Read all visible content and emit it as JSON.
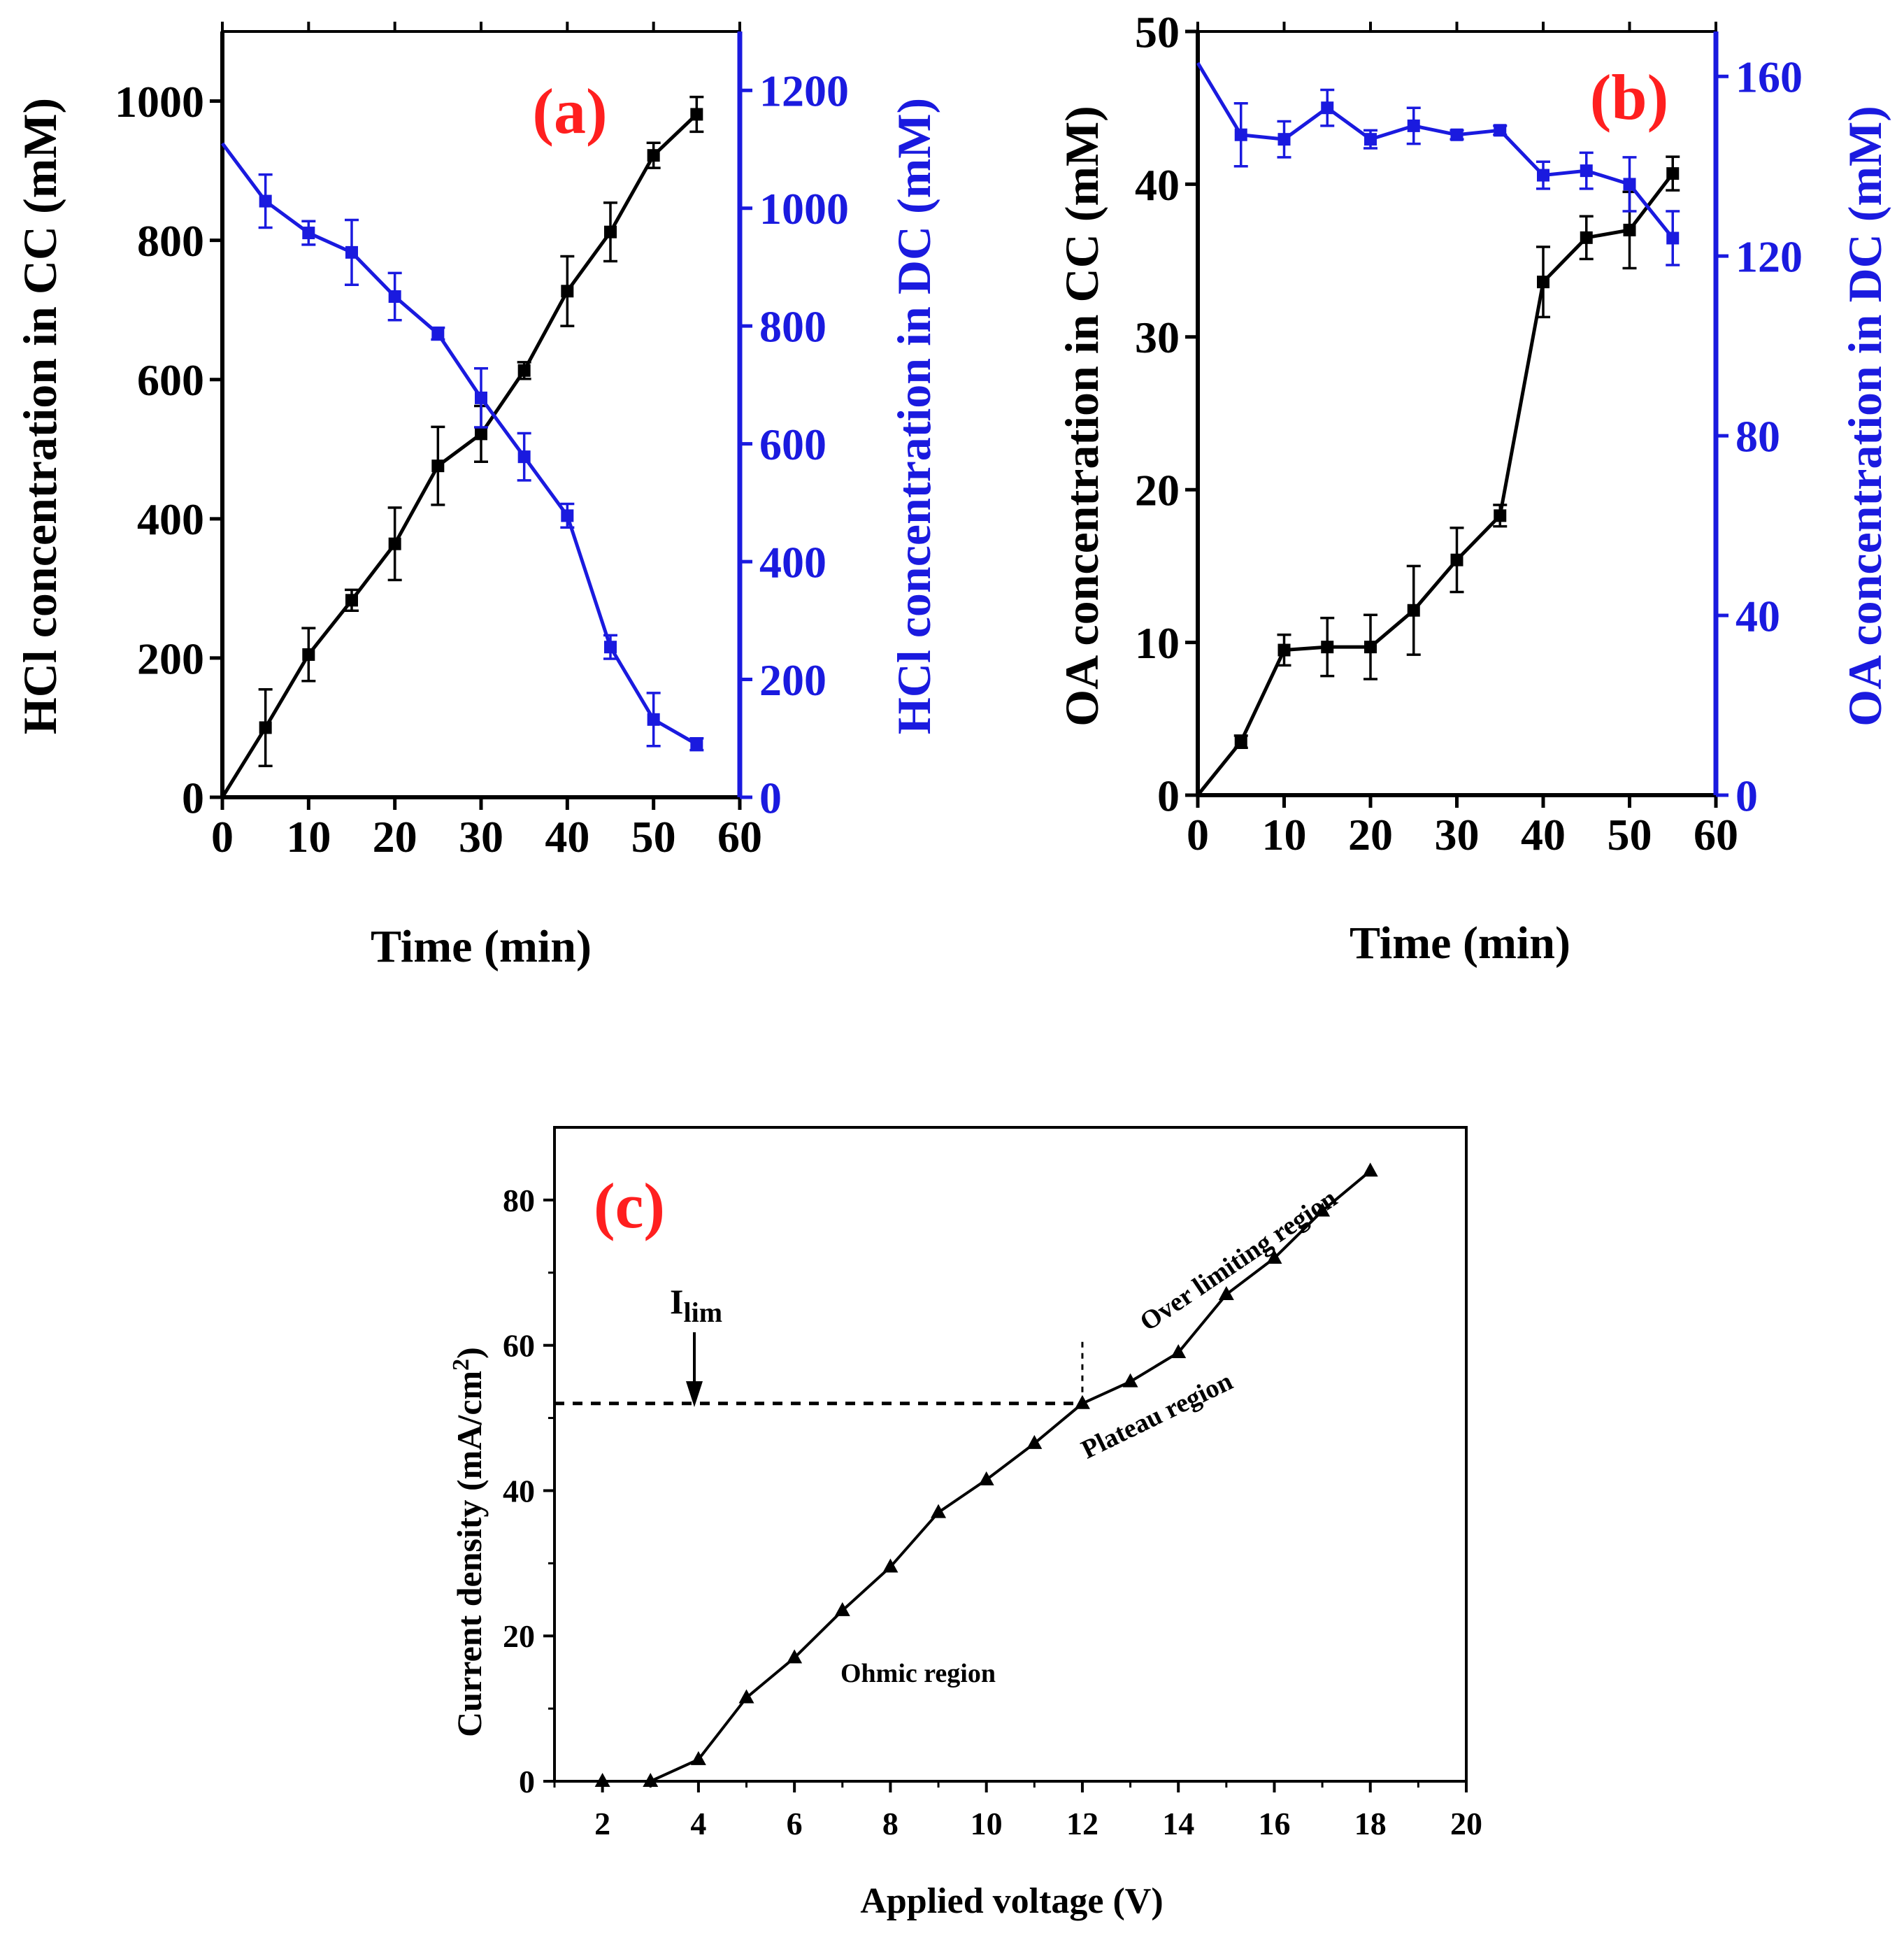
{
  "figure": {
    "colors": {
      "cc": "#000000",
      "dc": "#1a1adf",
      "panel_label": "#ff1f1f"
    }
  },
  "chart_data": [
    {
      "id": "a",
      "type": "line",
      "panel_label": "(a)",
      "xlabel": "Time (min)",
      "ylabel_left": "HCl concentration in CC (mM)",
      "ylabel_right": "HCl concentration in DC (mM)",
      "xlim": [
        0,
        60
      ],
      "ylim_left": [
        0,
        1100
      ],
      "ylim_right": [
        0,
        1300
      ],
      "xticks": [
        0,
        10,
        20,
        30,
        40,
        50,
        60
      ],
      "yticks_left": [
        0,
        200,
        400,
        600,
        800,
        1000
      ],
      "yticks_right": [
        0,
        200,
        400,
        600,
        800,
        1000,
        1200
      ],
      "series": [
        {
          "name": "HCl concentration in CC",
          "axis": "left",
          "color": "#000000",
          "marker": "square",
          "x": [
            0,
            5,
            10,
            15,
            20,
            25,
            30,
            35,
            40,
            45,
            50,
            55
          ],
          "y": [
            0,
            100,
            205,
            283,
            364,
            476,
            522,
            613,
            727,
            812,
            922,
            981
          ],
          "err": [
            0,
            55,
            38,
            15,
            52,
            56,
            40,
            12,
            50,
            42,
            18,
            25
          ]
        },
        {
          "name": "HCl concentration in DC",
          "axis": "right",
          "color": "#1a1adf",
          "marker": "square",
          "x": [
            0,
            5,
            10,
            15,
            20,
            25,
            30,
            35,
            40,
            45,
            50,
            55
          ],
          "y": [
            1110,
            1012,
            958,
            925,
            850,
            787,
            678,
            578,
            478,
            255,
            132,
            90
          ],
          "err": [
            0,
            45,
            20,
            55,
            40,
            10,
            50,
            40,
            20,
            20,
            45,
            10
          ]
        }
      ]
    },
    {
      "id": "b",
      "type": "line",
      "panel_label": "(b)",
      "xlabel": "Time (min)",
      "ylabel_left": "OA concentration in CC (mM)",
      "ylabel_right": "OA concentration in DC (mM)",
      "xlim": [
        0,
        60
      ],
      "ylim_left": [
        0,
        50
      ],
      "ylim_right": [
        0,
        170
      ],
      "xticks": [
        0,
        10,
        20,
        30,
        40,
        50,
        60
      ],
      "yticks_left": [
        0,
        10,
        20,
        30,
        40,
        50
      ],
      "yticks_right": [
        0,
        40,
        80,
        120,
        160
      ],
      "series": [
        {
          "name": "OA concentration in CC",
          "axis": "left",
          "color": "#000000",
          "marker": "square",
          "x": [
            0,
            5,
            10,
            15,
            20,
            25,
            30,
            35,
            40,
            45,
            50,
            55
          ],
          "y": [
            0,
            3.5,
            9.5,
            9.7,
            9.7,
            12.1,
            15.4,
            18.3,
            33.6,
            36.5,
            37.0,
            40.7
          ],
          "err": [
            0,
            0.4,
            1.0,
            1.9,
            2.1,
            2.9,
            2.1,
            0.7,
            2.3,
            1.4,
            2.5,
            1.1
          ]
        },
        {
          "name": "OA concentration in DC",
          "axis": "right",
          "color": "#1a1adf",
          "marker": "square",
          "x": [
            0,
            5,
            10,
            15,
            20,
            25,
            30,
            35,
            40,
            45,
            50,
            55
          ],
          "y": [
            163,
            147,
            146,
            153,
            146,
            149,
            147,
            148,
            138,
            139,
            136,
            124
          ],
          "err": [
            0,
            7,
            4,
            4,
            2,
            4,
            1,
            1,
            3,
            4,
            6,
            6
          ]
        }
      ]
    },
    {
      "id": "c",
      "type": "line",
      "panel_label": "(c)",
      "xlabel": "Applied voltage (V)",
      "ylabel_prefix": "Current density (mA/cm",
      "ylabel_sup": "2",
      "ylabel_suffix": ")",
      "xlim": [
        1,
        20
      ],
      "ylim": [
        0,
        90
      ],
      "xticks": [
        2,
        4,
        6,
        8,
        10,
        12,
        14,
        16,
        18,
        20
      ],
      "yticks": [
        0,
        20,
        40,
        60,
        80
      ],
      "series": [
        {
          "name": "Current density",
          "color": "#000000",
          "marker": "triangle",
          "x": [
            2,
            3,
            4,
            5,
            6,
            7,
            8,
            9,
            10,
            11,
            12,
            13,
            14,
            15,
            16,
            17,
            18
          ],
          "y": [
            0,
            0,
            3,
            11.5,
            17,
            23.5,
            29.5,
            37,
            41.5,
            46.5,
            52,
            55,
            59,
            67,
            72,
            78.5,
            84
          ]
        }
      ],
      "limiting_current": {
        "value": 52,
        "voltage": 12,
        "label_main": "I",
        "label_sub": "lim"
      },
      "annotations": {
        "ohmic": "Ohmic region",
        "plateau": "Plateau region",
        "over_limiting": "Over limiting region"
      }
    }
  ]
}
